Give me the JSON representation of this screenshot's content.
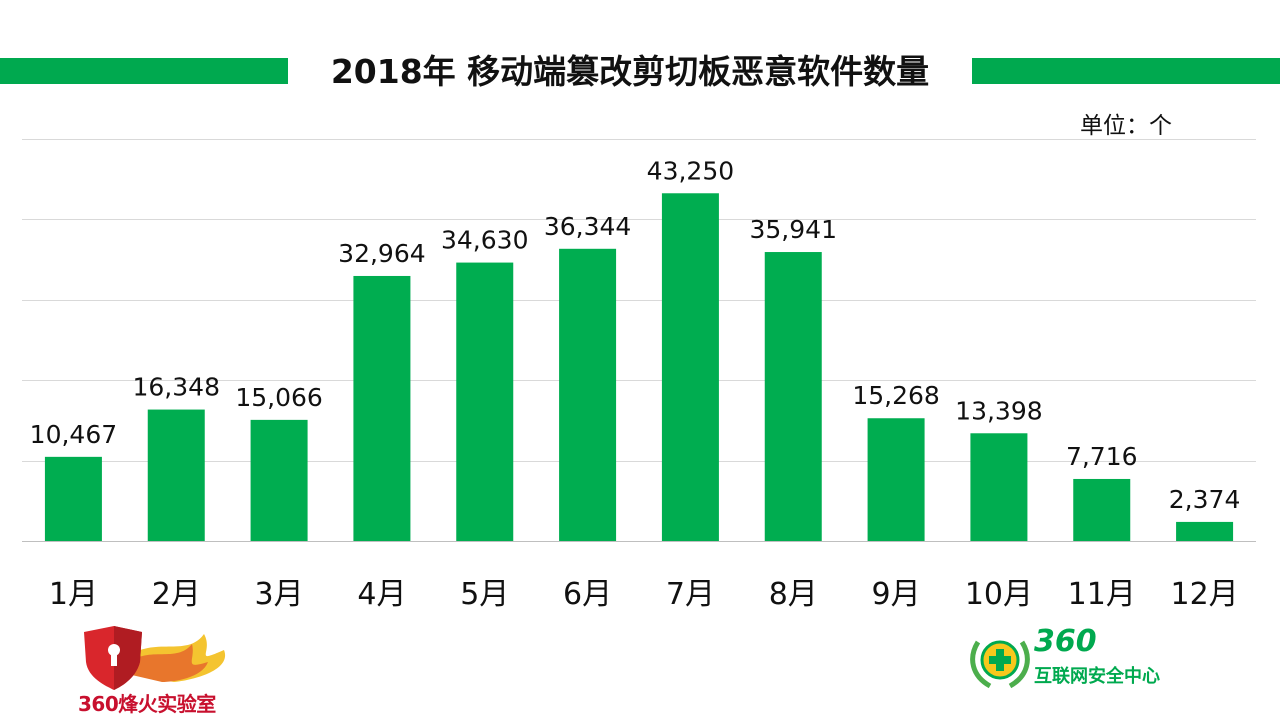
{
  "header": {
    "title": "2018年 移动端篡改剪切板恶意软件数量",
    "unit_label": "单位：个"
  },
  "colors": {
    "accent": "#00a94f",
    "bar": "#00ad50",
    "grid": "#d9d9d9"
  },
  "chart_data": {
    "type": "bar",
    "title": "2018年 移动端篡改剪切板恶意软件数量",
    "xlabel": "",
    "ylabel": "单位：个",
    "categories": [
      "1月",
      "2月",
      "3月",
      "4月",
      "5月",
      "6月",
      "7月",
      "8月",
      "9月",
      "10月",
      "11月",
      "12月"
    ],
    "values": [
      10467,
      16348,
      15066,
      32964,
      34630,
      36344,
      43250,
      35941,
      15268,
      13398,
      7716,
      2374
    ],
    "value_labels": [
      "10,467",
      "16,348",
      "15,066",
      "32,964",
      "34,630",
      "36,344",
      "43,250",
      "35,941",
      "15,268",
      "13,398",
      "7,716",
      "2,374"
    ],
    "ylim": [
      0,
      50000
    ],
    "ytick_step": 10000,
    "grid": true,
    "legend": "none"
  },
  "logos": {
    "left_text": "360烽火实验室",
    "right_number": "360",
    "right_name": "互联网安全中心"
  }
}
